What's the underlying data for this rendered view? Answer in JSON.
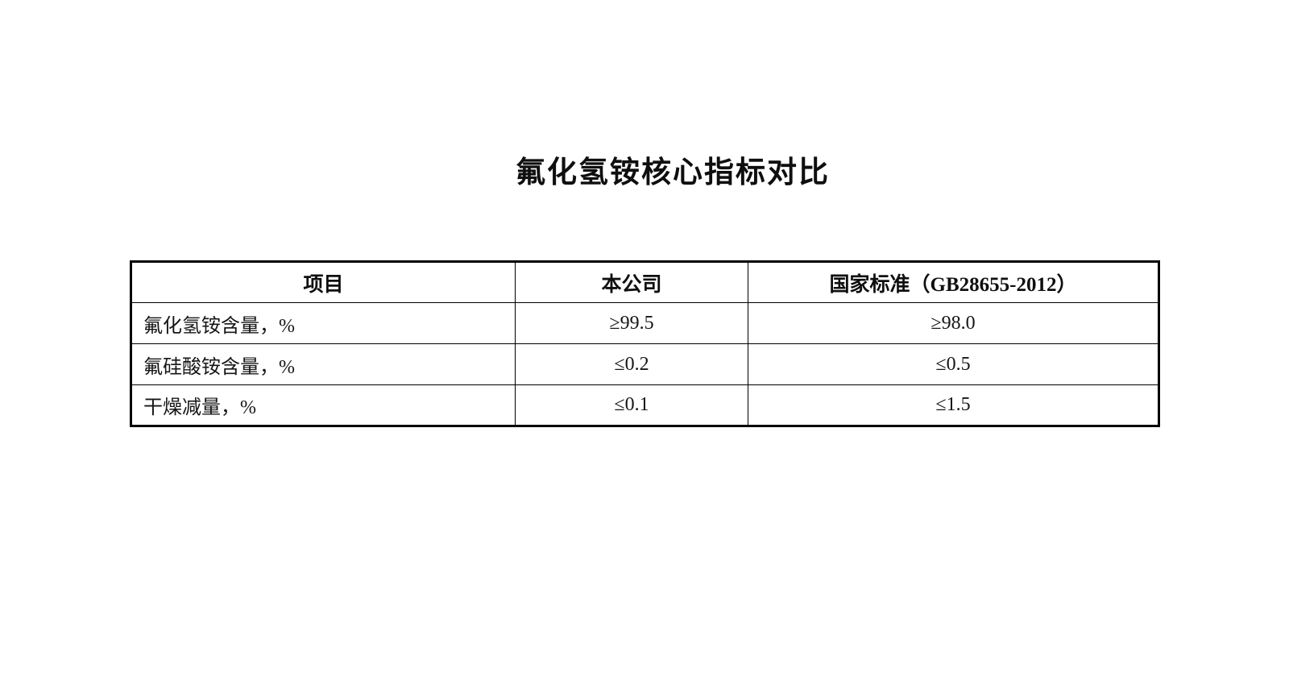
{
  "title": "氟化氢铵核心指标对比",
  "colors": {
    "background": "#ffffff",
    "text": "#161616",
    "border": "#000000"
  },
  "table": {
    "headers": {
      "item": "项目",
      "company": "本公司",
      "standard": "国家标准（GB28655-2012）"
    },
    "rows": [
      {
        "item": "氟化氢铵含量，%",
        "company": "≥99.5",
        "standard": "≥98.0"
      },
      {
        "item": "氟硅酸铵含量，%",
        "company": "≤0.2",
        "standard": "≤0.5"
      },
      {
        "item": "干燥减量，%",
        "company": "≤0.1",
        "standard": "≤1.5"
      }
    ]
  }
}
